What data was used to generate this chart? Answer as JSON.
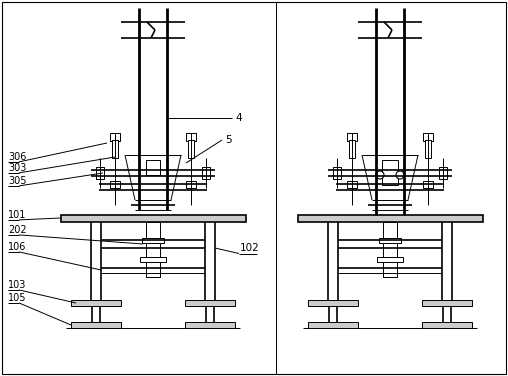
{
  "bg_color": "#ffffff",
  "line_color": "#000000",
  "fig_width": 5.08,
  "fig_height": 3.76,
  "dpi": 100
}
